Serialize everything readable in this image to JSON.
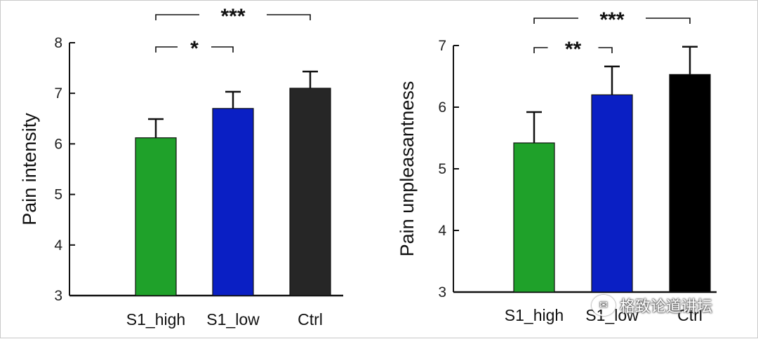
{
  "chart_data": [
    {
      "type": "bar",
      "title": "",
      "xlabel": "",
      "ylabel": "Pain intensity",
      "ylim": [
        3,
        8
      ],
      "yticks": [
        3,
        4,
        5,
        6,
        7,
        8
      ],
      "categories": [
        "S1_high",
        "S1_low",
        "Ctrl"
      ],
      "values": [
        6.12,
        6.7,
        7.1
      ],
      "errors": [
        0.37,
        0.33,
        0.33
      ],
      "colors": [
        "#1fa12a",
        "#0a1fc4",
        "#262626"
      ],
      "significance": [
        {
          "from": 0,
          "to": 2,
          "label": "***"
        },
        {
          "from": 0,
          "to": 1,
          "label": "*"
        }
      ]
    },
    {
      "type": "bar",
      "title": "",
      "xlabel": "",
      "ylabel": "Pain unpleasantness",
      "ylim": [
        3,
        7
      ],
      "yticks": [
        3,
        4,
        5,
        6,
        7
      ],
      "categories": [
        "S1_high",
        "S1_low",
        "Ctrl"
      ],
      "values": [
        5.42,
        6.2,
        6.53
      ],
      "errors": [
        0.5,
        0.46,
        0.45
      ],
      "colors": [
        "#1fa12a",
        "#0a1fc4",
        "#000000"
      ],
      "significance": [
        {
          "from": 0,
          "to": 2,
          "label": "***"
        },
        {
          "from": 0,
          "to": 1,
          "label": "**"
        }
      ]
    }
  ],
  "watermark": {
    "icon": "wechat-icon",
    "text": "格致论道讲坛"
  }
}
